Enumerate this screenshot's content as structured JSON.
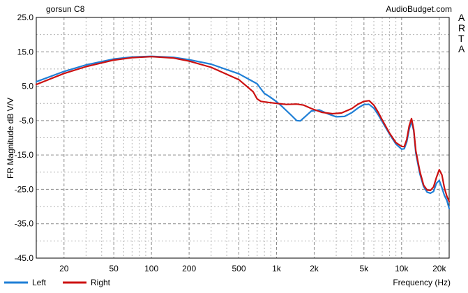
{
  "header": {
    "title": "gorsun C8",
    "source": "AudioBudget.com",
    "side_label": "ARTA"
  },
  "chart_data": {
    "type": "line",
    "title": "gorsun C8",
    "xlabel": "Frequency (Hz)",
    "ylabel": "FR Magnitude dB V/V",
    "x_scale": "log",
    "xlim": [
      12,
      24000
    ],
    "ylim": [
      -45,
      25
    ],
    "x_tick_labels": [
      "20",
      "50",
      "100",
      "200",
      "500",
      "1k",
      "2k",
      "5k",
      "10k",
      "20k"
    ],
    "x_tick_values": [
      20,
      50,
      100,
      200,
      500,
      1000,
      2000,
      5000,
      10000,
      20000
    ],
    "y_tick_labels": [
      "25.0",
      "15.0",
      "5.0",
      "-5.0",
      "-15.0",
      "-25.0",
      "-35.0",
      "-45.0"
    ],
    "y_tick_values": [
      25,
      15,
      5,
      -5,
      -15,
      -25,
      -35,
      -45
    ],
    "grid": true,
    "legend_position": "bottom-left",
    "series": [
      {
        "name": "Left",
        "color": "#1f7fd6",
        "points": [
          [
            12,
            6.3
          ],
          [
            20,
            9.3
          ],
          [
            30,
            11.2
          ],
          [
            50,
            12.9
          ],
          [
            70,
            13.5
          ],
          [
            100,
            13.7
          ],
          [
            150,
            13.4
          ],
          [
            200,
            12.7
          ],
          [
            300,
            11.4
          ],
          [
            500,
            8.6
          ],
          [
            700,
            5.7
          ],
          [
            750,
            4.2
          ],
          [
            800,
            2.9
          ],
          [
            900,
            1.7
          ],
          [
            1000,
            0.5
          ],
          [
            1100,
            -0.8
          ],
          [
            1300,
            -3.3
          ],
          [
            1450,
            -5.0
          ],
          [
            1550,
            -5.1
          ],
          [
            1700,
            -3.8
          ],
          [
            1900,
            -2.2
          ],
          [
            2200,
            -1.9
          ],
          [
            2600,
            -3.1
          ],
          [
            3000,
            -3.9
          ],
          [
            3500,
            -3.8
          ],
          [
            4000,
            -2.7
          ],
          [
            4500,
            -1.3
          ],
          [
            5000,
            -0.3
          ],
          [
            5500,
            -0.3
          ],
          [
            6000,
            -1.4
          ],
          [
            6500,
            -3.3
          ],
          [
            7000,
            -5.3
          ],
          [
            8000,
            -8.9
          ],
          [
            9000,
            -11.8
          ],
          [
            10000,
            -13.3
          ],
          [
            10500,
            -13.2
          ],
          [
            11000,
            -11.2
          ],
          [
            11500,
            -7.5
          ],
          [
            12000,
            -5.2
          ],
          [
            12500,
            -8.0
          ],
          [
            13000,
            -14.5
          ],
          [
            14000,
            -20.5
          ],
          [
            15000,
            -24.2
          ],
          [
            16000,
            -25.8
          ],
          [
            17000,
            -26.1
          ],
          [
            18000,
            -25.6
          ],
          [
            19000,
            -23.2
          ],
          [
            20000,
            -22.4
          ],
          [
            21000,
            -24.5
          ],
          [
            22000,
            -26.8
          ],
          [
            23000,
            -28.2
          ],
          [
            24000,
            -30.6
          ]
        ]
      },
      {
        "name": "Right",
        "color": "#cc1111",
        "points": [
          [
            12,
            5.5
          ],
          [
            20,
            8.7
          ],
          [
            30,
            10.7
          ],
          [
            50,
            12.6
          ],
          [
            70,
            13.3
          ],
          [
            100,
            13.6
          ],
          [
            150,
            13.2
          ],
          [
            200,
            12.3
          ],
          [
            300,
            10.5
          ],
          [
            500,
            6.9
          ],
          [
            650,
            3.4
          ],
          [
            700,
            1.3
          ],
          [
            750,
            0.6
          ],
          [
            850,
            0.3
          ],
          [
            1000,
            0.0
          ],
          [
            1200,
            -0.3
          ],
          [
            1450,
            -0.2
          ],
          [
            1650,
            -0.5
          ],
          [
            1900,
            -1.5
          ],
          [
            2300,
            -2.6
          ],
          [
            2800,
            -3.0
          ],
          [
            3300,
            -2.8
          ],
          [
            4000,
            -1.5
          ],
          [
            4500,
            -0.2
          ],
          [
            5000,
            0.6
          ],
          [
            5500,
            0.8
          ],
          [
            6000,
            -0.5
          ],
          [
            6500,
            -2.6
          ],
          [
            7000,
            -4.8
          ],
          [
            8000,
            -8.6
          ],
          [
            9000,
            -11.4
          ],
          [
            10000,
            -12.5
          ],
          [
            10500,
            -12.6
          ],
          [
            11000,
            -10.5
          ],
          [
            11500,
            -6.5
          ],
          [
            12000,
            -4.4
          ],
          [
            12500,
            -7.6
          ],
          [
            13000,
            -13.8
          ],
          [
            14000,
            -19.8
          ],
          [
            15000,
            -23.8
          ],
          [
            16000,
            -25.2
          ],
          [
            17000,
            -25.3
          ],
          [
            18000,
            -24.3
          ],
          [
            19000,
            -21.5
          ],
          [
            20000,
            -19.3
          ],
          [
            21000,
            -20.8
          ],
          [
            22000,
            -24.6
          ],
          [
            23000,
            -27.0
          ],
          [
            24000,
            -28.5
          ]
        ]
      }
    ]
  }
}
